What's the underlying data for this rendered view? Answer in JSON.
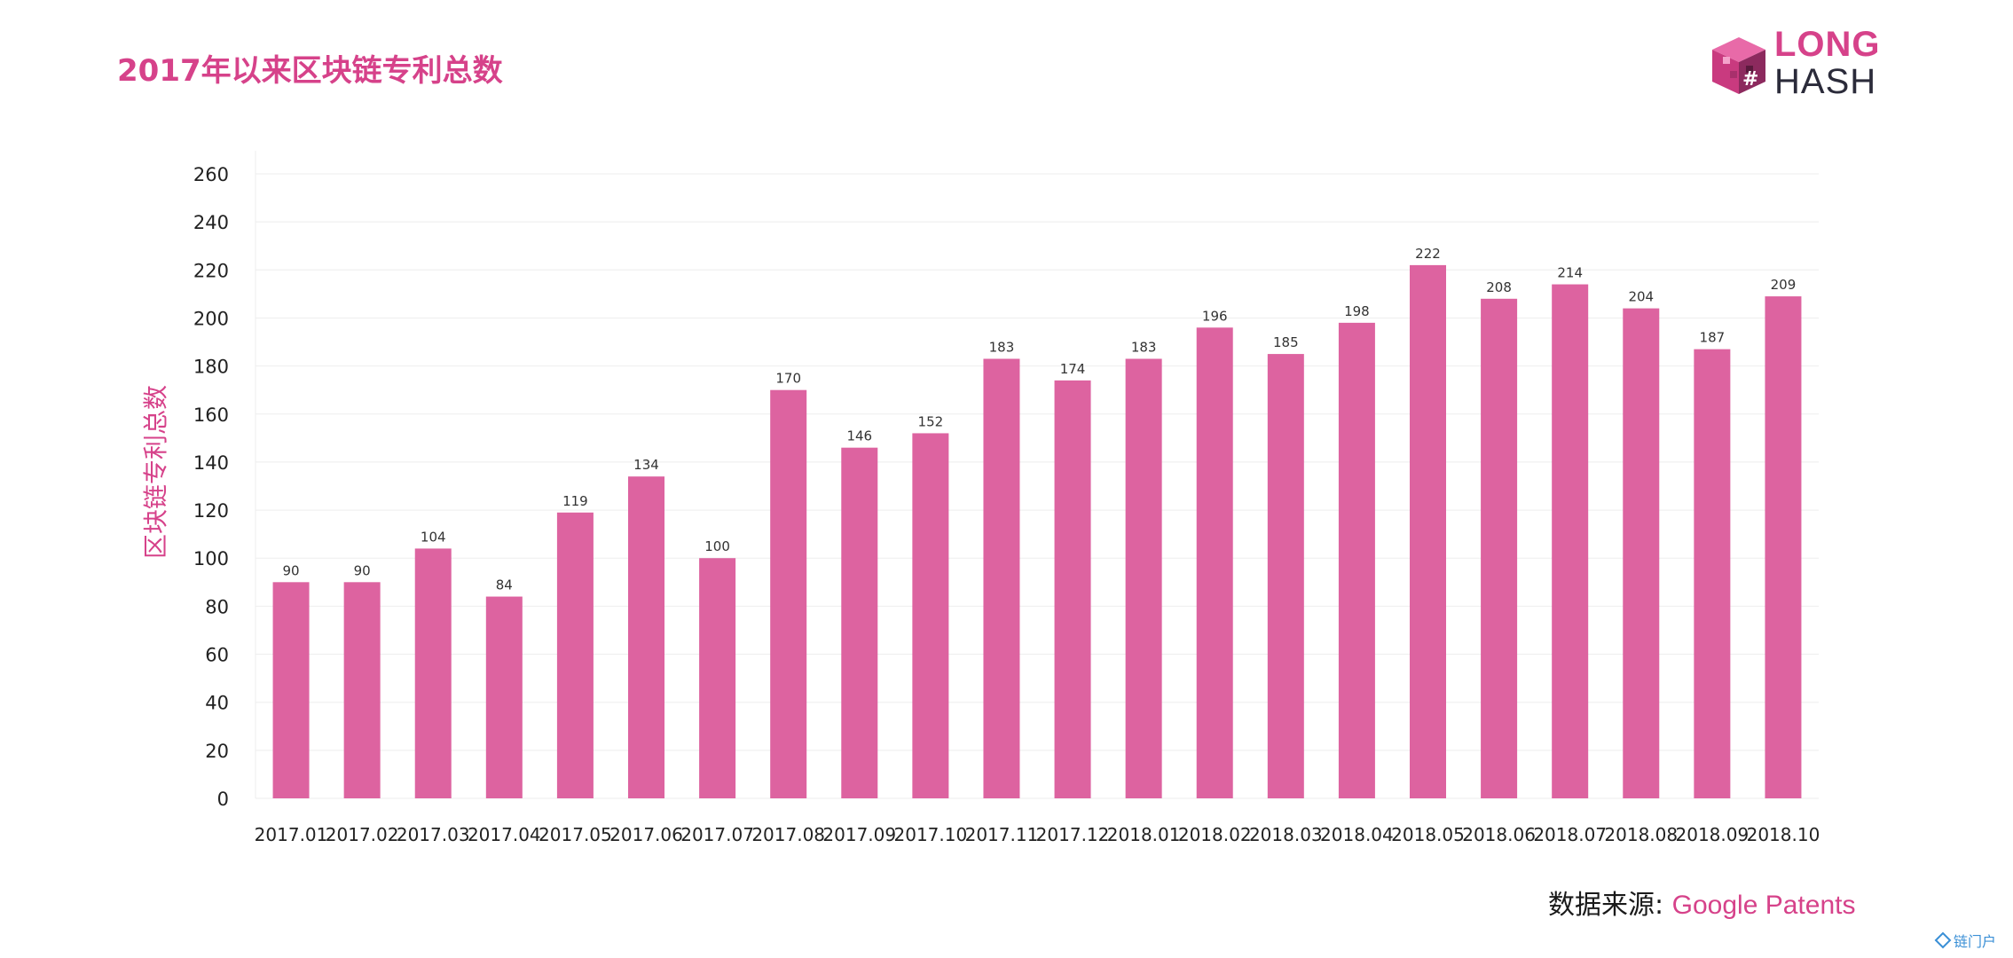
{
  "page": {
    "title": "2017年以来区块链专利总数",
    "logo": {
      "line1": "LONG",
      "line2": "HASH"
    },
    "source_label": "数据来源: ",
    "source_value": "Google Patents",
    "watermark": "链门户"
  },
  "colors": {
    "bar": "#dd63a0",
    "accent": "#d6428a",
    "grid": "#eeeeee",
    "axis_text": "#222222",
    "label_text": "#333333"
  },
  "chart_data": {
    "type": "bar",
    "title": "2017年以来区块链专利总数",
    "xlabel": "",
    "ylabel": "区块链专利总数",
    "ylim": [
      0,
      260
    ],
    "yticks": [
      0,
      20,
      40,
      60,
      80,
      100,
      120,
      140,
      160,
      180,
      200,
      220,
      240,
      260
    ],
    "grid": true,
    "categories": [
      "2017.01",
      "2017.02",
      "2017.03",
      "2017.04",
      "2017.05",
      "2017.06",
      "2017.07",
      "2017.08",
      "2017.09",
      "2017.10",
      "2017.11",
      "2017.12",
      "2018.01",
      "2018.02",
      "2018.03",
      "2018.04",
      "2018.05",
      "2018.06",
      "2018.07",
      "2018.08",
      "2018.09",
      "2018.10"
    ],
    "values": [
      90,
      90,
      104,
      84,
      119,
      134,
      100,
      170,
      146,
      152,
      183,
      174,
      183,
      196,
      185,
      198,
      222,
      208,
      214,
      204,
      187,
      209
    ],
    "data_labels": true
  }
}
